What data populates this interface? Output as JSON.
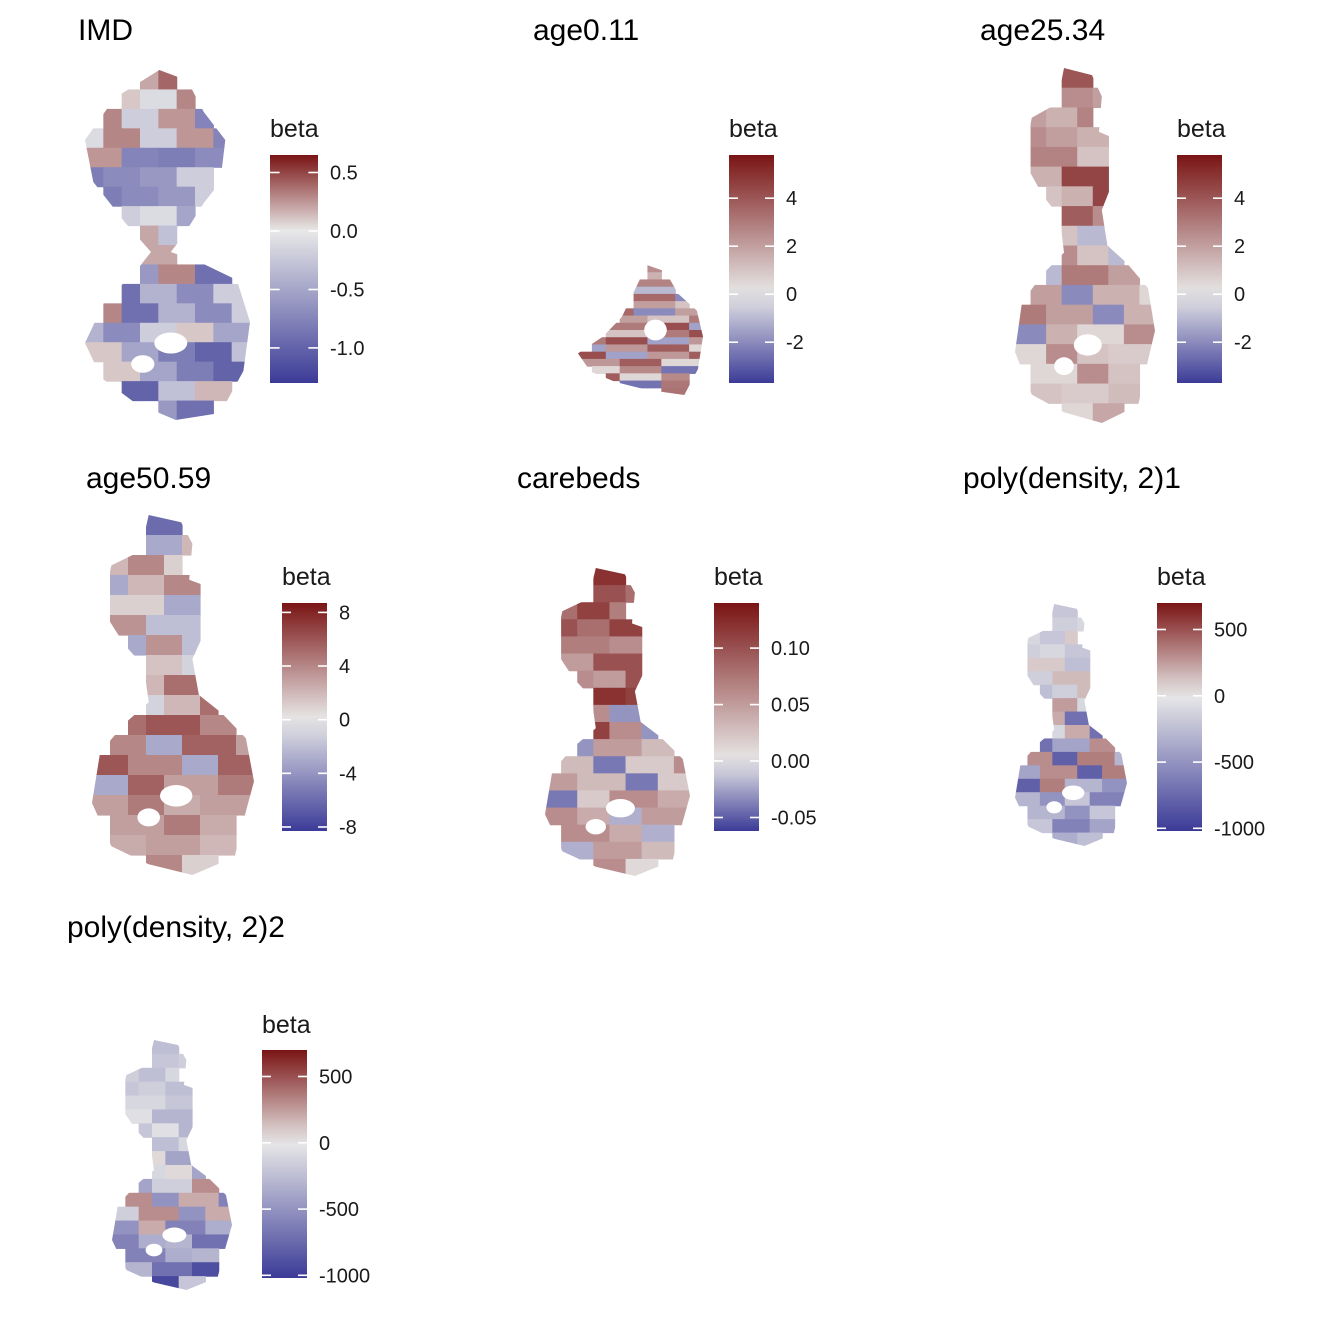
{
  "figure": {
    "panels": [
      {
        "title": "IMD",
        "legend": {
          "title": "beta",
          "min": -1.3,
          "max": 0.65,
          "ticks": [
            0.5,
            0.0,
            -0.5,
            -1.0
          ],
          "tick_labels": [
            "0.5",
            "0.0",
            "-0.5",
            "-1.0"
          ]
        },
        "map": {
          "shape": "split",
          "region_values": [
            0.35,
            0.2,
            0.4,
            0.1,
            -0.1,
            0.3,
            -0.2,
            0.25,
            -0.75,
            -0.8,
            -0.7,
            -0.6,
            -0.2,
            -0.1,
            -0.5,
            0.2,
            -0.3,
            -0.6,
            0.3,
            -0.9,
            -0.4,
            -0.7,
            -0.2,
            0.1,
            -0.5,
            -0.8,
            -1.0,
            -0.3,
            0.15,
            -0.6,
            -0.9,
            -0.4
          ]
        }
      },
      {
        "title": "age0.11",
        "legend": {
          "title": "beta",
          "min": -3.7,
          "max": 5.8,
          "ticks": [
            4,
            2,
            0,
            -2
          ],
          "tick_labels": [
            "4",
            "2",
            "0",
            "-2"
          ]
        },
        "map": {
          "shape": "small",
          "region_values": [
            3.2,
            2.5,
            4.0,
            1.5,
            -1.0,
            2.8,
            3.5,
            -2.0,
            2.0,
            1.0,
            3.0,
            4.2,
            -1.5,
            2.2,
            3.8,
            0.5,
            2.6,
            -2.5,
            3.1,
            1.8
          ]
        }
      },
      {
        "title": "age25.34",
        "legend": {
          "title": "beta",
          "min": -3.7,
          "max": 5.8,
          "ticks": [
            4,
            2,
            0,
            -2
          ],
          "tick_labels": [
            "4",
            "2",
            "0",
            "-2"
          ]
        },
        "map": {
          "shape": "tall",
          "region_values": [
            3.5,
            4.0,
            3.0,
            2.5,
            2.0,
            1.5,
            2.8,
            1.0,
            1.5,
            4.5,
            3.8,
            2.5,
            1.0,
            -1.0,
            3.0,
            2.0,
            -2.0,
            1.5,
            0.5,
            2.5,
            1.0,
            0.8,
            1.2,
            0.5,
            1.8
          ]
        }
      },
      {
        "title": "age50.59",
        "legend": {
          "title": "beta",
          "min": -8.3,
          "max": 8.7,
          "ticks": [
            8,
            4,
            0,
            -4,
            -8
          ],
          "tick_labels": [
            "8",
            "4",
            "0",
            "-4",
            "-8"
          ]
        },
        "map": {
          "shape": "tall",
          "region_values": [
            -7.0,
            -6.0,
            -4.0,
            -3.0,
            2.0,
            4.0,
            1.0,
            -3.0,
            3.5,
            -2.0,
            1.5,
            -1.0,
            2.0,
            5.0,
            6.0,
            4.0,
            -3.0,
            5.5,
            3.0,
            4.5,
            2.5,
            3.0,
            2.0,
            4.0,
            1.0
          ]
        }
      },
      {
        "title": "carebeds",
        "legend": {
          "title": "beta",
          "min": -0.062,
          "max": 0.14,
          "ticks": [
            0.1,
            0.05,
            0.0,
            -0.05
          ],
          "tick_labels": [
            "0.10",
            "0.05",
            "0.00",
            "-0.05"
          ]
        },
        "map": {
          "shape": "tall",
          "region_values": [
            0.14,
            0.12,
            0.09,
            0.1,
            0.08,
            0.11,
            0.07,
            0.06,
            0.05,
            0.1,
            0.12,
            0.11,
            0.06,
            -0.03,
            0.05,
            0.03,
            -0.04,
            0.02,
            0.06,
            0.04,
            -0.02,
            0.05,
            0.03,
            0.06,
            0.01
          ]
        }
      },
      {
        "title": "poly(density, 2)1",
        "legend": {
          "title": "beta",
          "min": -1020,
          "max": 700,
          "ticks": [
            500,
            0,
            -500,
            -1000
          ],
          "tick_labels": [
            "500",
            "0",
            "-500",
            "-1000"
          ]
        },
        "map": {
          "shape": "tall",
          "region_values": [
            -250,
            -200,
            -300,
            -150,
            -100,
            -200,
            100,
            -250,
            -150,
            150,
            250,
            -100,
            200,
            -700,
            -400,
            300,
            -800,
            350,
            -300,
            -500,
            -200,
            -600,
            -400,
            -350,
            -250
          ]
        }
      },
      {
        "title": "poly(density, 2)2",
        "legend": {
          "title": "beta",
          "min": -1020,
          "max": 700,
          "ticks": [
            500,
            0,
            -500,
            -1000
          ],
          "tick_labels": [
            "500",
            "0",
            "-500",
            "-1000"
          ]
        },
        "map": {
          "shape": "tall",
          "region_values": [
            -200,
            -250,
            -300,
            -200,
            -150,
            -250,
            -100,
            -200,
            -50,
            -300,
            -250,
            -100,
            50,
            -400,
            -150,
            300,
            -500,
            200,
            -600,
            -350,
            -300,
            -700,
            -900,
            -950,
            -200
          ]
        }
      }
    ],
    "colors": {
      "low": "#3b3b98",
      "mid": "#e8e8e8",
      "high": "#7a1414",
      "high_soft": "#b56b66"
    }
  }
}
